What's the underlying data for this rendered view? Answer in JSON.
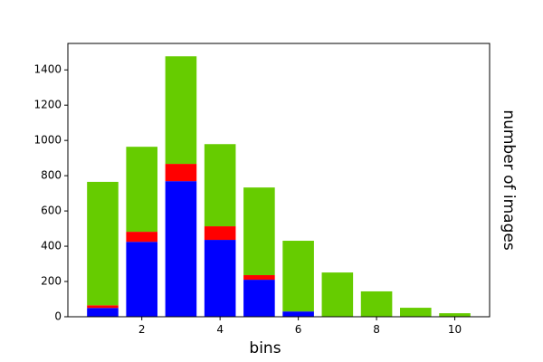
{
  "chart_data": {
    "type": "stacked_bar",
    "x": [
      1,
      2,
      3,
      4,
      5,
      6,
      7,
      8,
      9,
      10
    ],
    "series": [
      {
        "color": "#0000ff",
        "values": [
          50,
          425,
          769,
          436,
          210,
          30,
          0,
          0,
          0,
          0
        ]
      },
      {
        "color": "#ff0000",
        "values": [
          15,
          57,
          98,
          77,
          26,
          0,
          0,
          0,
          0,
          0
        ]
      },
      {
        "color": "#66cc00",
        "values": [
          700,
          482,
          610,
          466,
          497,
          401,
          251,
          144,
          51,
          20
        ]
      }
    ],
    "xlabel": "bins",
    "ylabel": "number of images",
    "xlim": [
      0.11,
      10.89
    ],
    "ylim": [
      0,
      1550
    ],
    "xticks": [
      2,
      4,
      6,
      8,
      10
    ],
    "yticks": [
      0,
      200,
      400,
      600,
      800,
      1000,
      1200,
      1400
    ]
  }
}
